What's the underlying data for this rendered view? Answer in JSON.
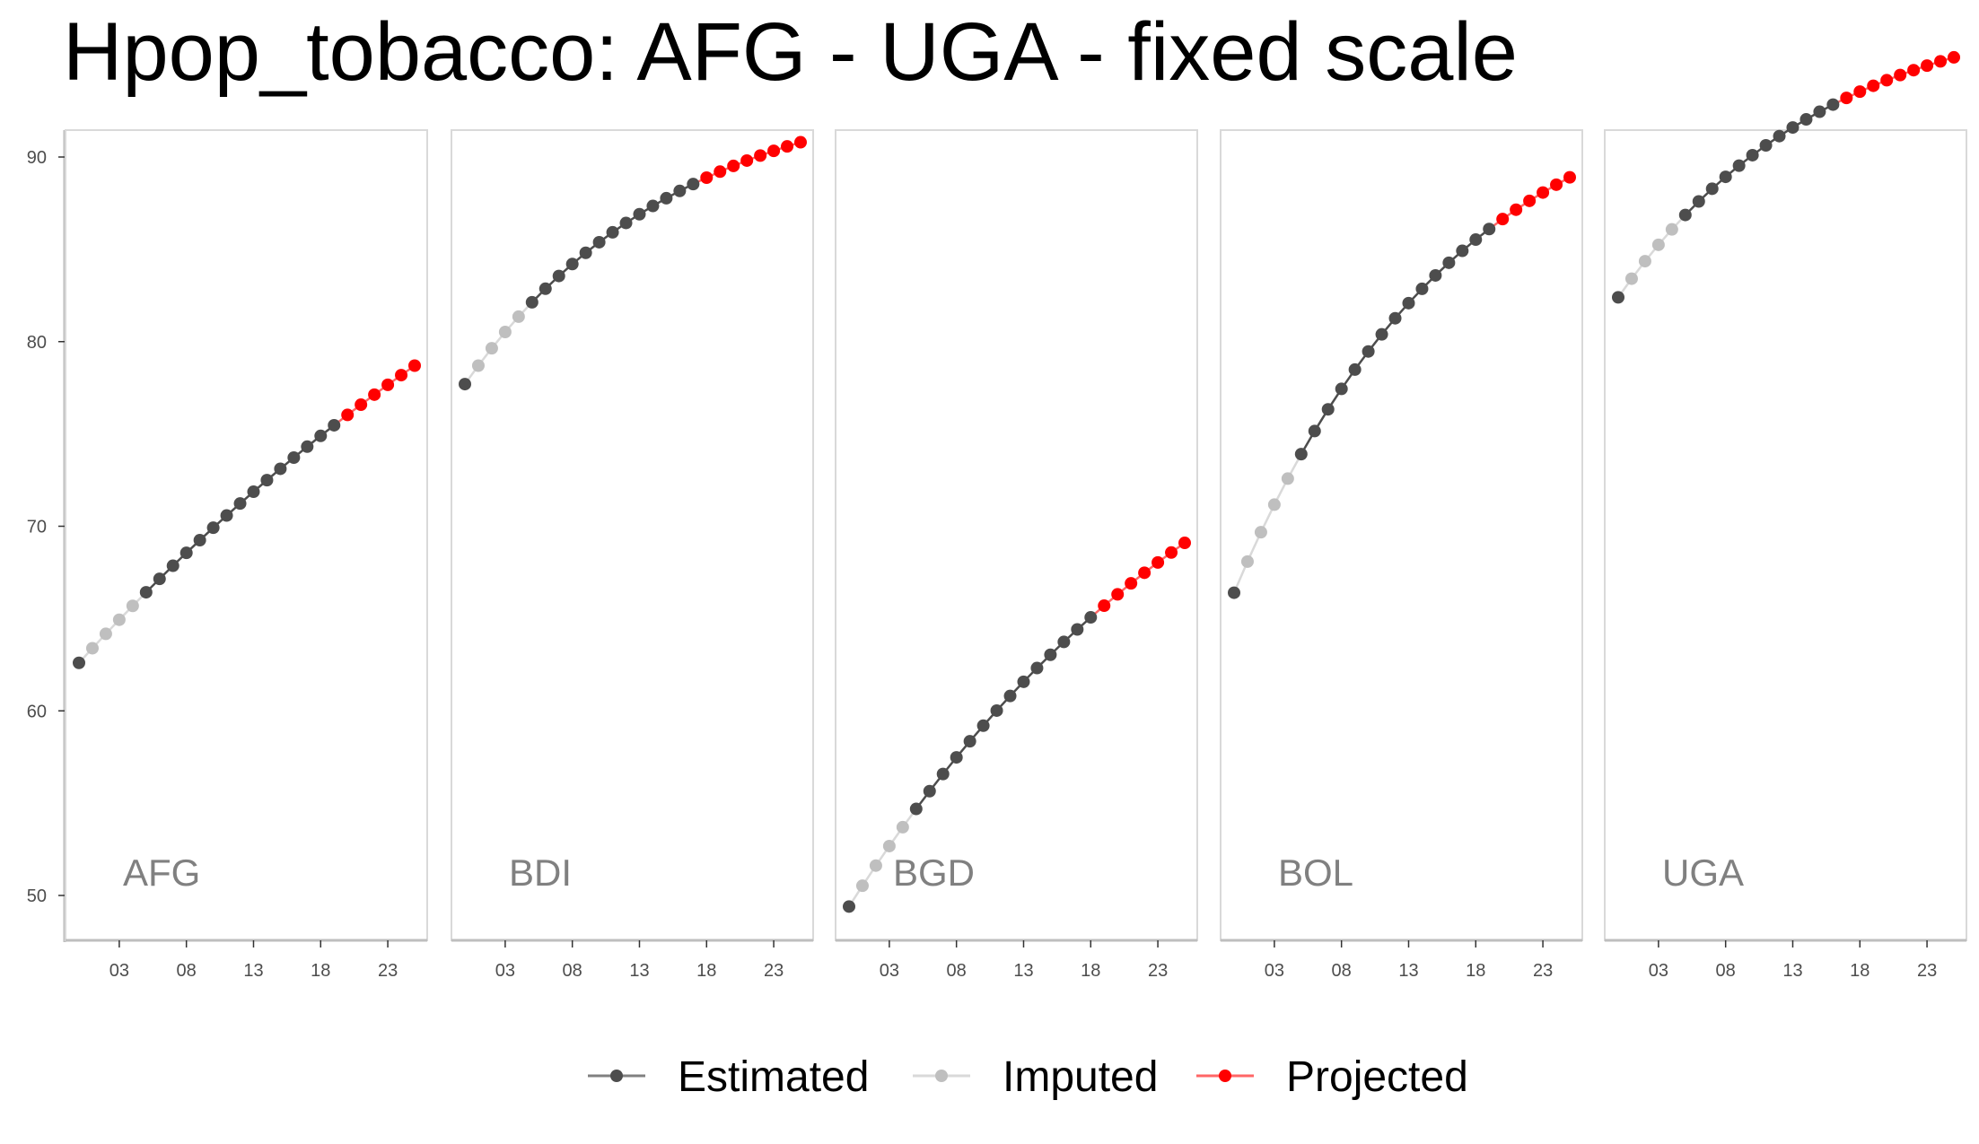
{
  "chart_data": {
    "type": "scatter",
    "title": "Hpop_tobacco: AFG - UGA - fixed scale",
    "xlabel": "",
    "ylabel": "",
    "xlim": [
      2000,
      2025
    ],
    "ylim": [
      48,
      97
    ],
    "x_ticks": [
      2003,
      2008,
      2013,
      2018,
      2023
    ],
    "x_tick_labels": [
      "03",
      "08",
      "13",
      "18",
      "23"
    ],
    "y_ticks": [
      50,
      60,
      70,
      80,
      90
    ],
    "y_tick_labels": [
      "50",
      "60",
      "70",
      "80",
      "90"
    ],
    "grid": false,
    "legend_position": "bottom",
    "legend": [
      {
        "name": "Estimated",
        "color": "#4d4d4d"
      },
      {
        "name": "Imputed",
        "color": "#bfbfbf"
      },
      {
        "name": "Projected",
        "color": "#ff0000"
      }
    ],
    "panels": [
      {
        "label": "AFG",
        "start": 62.6,
        "end": 78.7,
        "k": 0.45,
        "types": "EIIIIEEEEEEEEEEEEEEEPPPPPP"
      },
      {
        "label": "BDI",
        "start": 77.7,
        "end": 90.8,
        "k": 1.55,
        "types": "EIIIIEEEEEEEEEEEEEPPPPPPPP"
      },
      {
        "label": "BGD",
        "start": 49.4,
        "end": 69.1,
        "k": 0.8,
        "types": "EIIIIEEEEEEEEEEEEEEPPPPPPP"
      },
      {
        "label": "BOL",
        "start": 66.4,
        "end": 88.9,
        "k": 1.5,
        "types": "EIIIIEEEEEEEEEEEEEEEPPPPPP"
      },
      {
        "label": "UGA",
        "start": 82.4,
        "end": 95.4,
        "k": 1.6,
        "types": "EIIIIEEEEEEEEEEEEPPPPPPPPP"
      }
    ]
  }
}
